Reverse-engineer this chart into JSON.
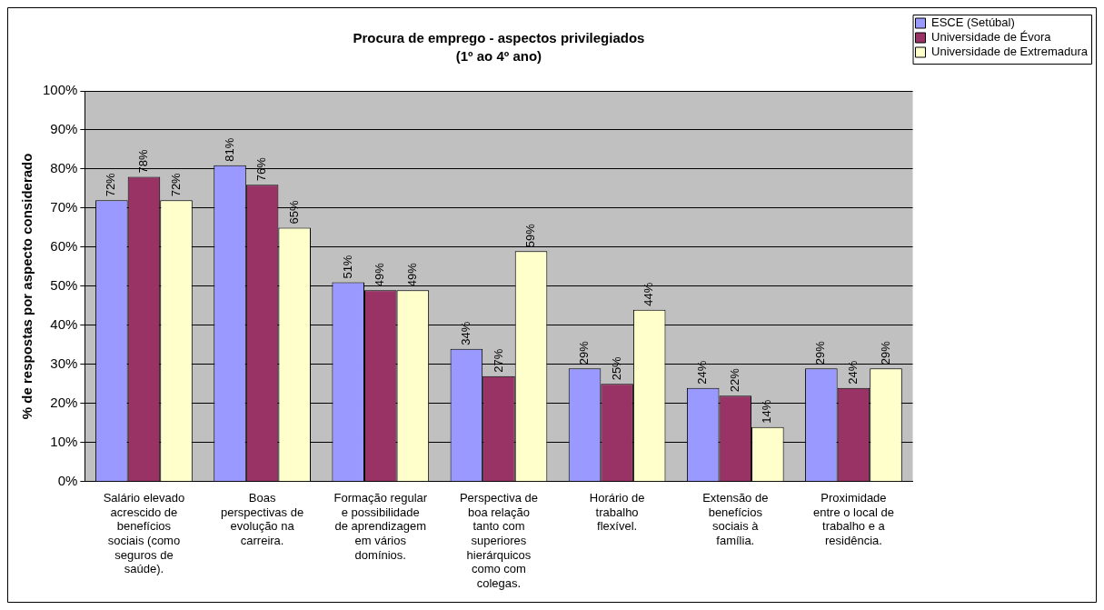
{
  "chart_data": {
    "type": "bar",
    "title": "Procura de emprego - aspectos privilegiados",
    "subtitle": "(1º ao 4º ano)",
    "ylabel": "% de respostas por aspecto considerado",
    "categories": [
      "Salário elevado acrescido de benefícios sociais (como seguros de saúde).",
      "Boas perspectivas de evolução na carreira.",
      "Formação regular e possibilidade de aprendizagem em vários domínios.",
      "Perspectiva de boa relação tanto com superiores hierárquicos como com colegas.",
      "Horário de trabalho flexível.",
      "Extensão de benefícios sociais à família.",
      "Proximidade entre o local de trabalho e a residência."
    ],
    "series": [
      {
        "name": "ESCE (Setúbal)",
        "color": "#9999ff",
        "values": [
          72,
          81,
          51,
          34,
          29,
          24,
          29
        ],
        "value_labels": [
          "72%",
          "81%",
          "51%",
          "34%",
          "29%",
          "24%",
          "29%"
        ]
      },
      {
        "name": "Universidade de Évora",
        "color": "#993366",
        "values": [
          78,
          76,
          49,
          27,
          25,
          22,
          24
        ],
        "value_labels": [
          "78%",
          "76%",
          "49%",
          "27%",
          "25%",
          "22%",
          "24%"
        ]
      },
      {
        "name": "Universidade de Extremadura",
        "color": "#ffffcc",
        "values": [
          72,
          65,
          49,
          59,
          44,
          14,
          29
        ],
        "value_labels": [
          "72%",
          "65%",
          "49%",
          "59%",
          "44%",
          "14%",
          "29%"
        ]
      }
    ],
    "ylim": [
      0,
      100
    ],
    "yticks": [
      {
        "value": 0,
        "label": "0%"
      },
      {
        "value": 10,
        "label": "10%"
      },
      {
        "value": 20,
        "label": "20%"
      },
      {
        "value": 30,
        "label": "30%"
      },
      {
        "value": 40,
        "label": "40%"
      },
      {
        "value": 50,
        "label": "50%"
      },
      {
        "value": 60,
        "label": "60%"
      },
      {
        "value": 70,
        "label": "70%"
      },
      {
        "value": 80,
        "label": "80%"
      },
      {
        "value": 90,
        "label": "90%"
      },
      {
        "value": 100,
        "label": "100%"
      }
    ],
    "grid": "y",
    "legend": "top right"
  }
}
